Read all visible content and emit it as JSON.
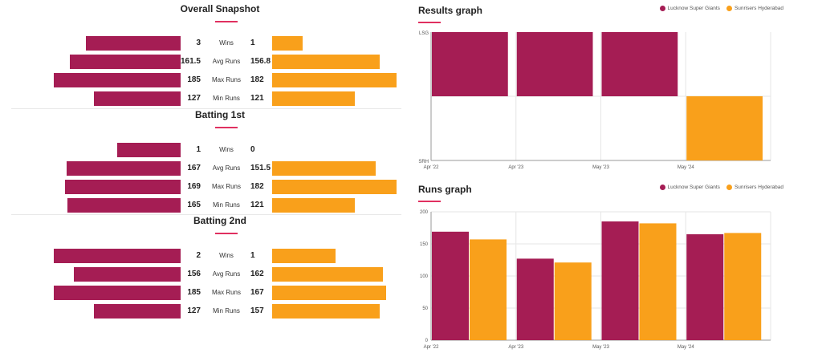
{
  "colors": {
    "lsg": "#a51d54",
    "srh": "#f9a01b",
    "accent": "#e03060"
  },
  "snapshot_sections": [
    {
      "title": "Overall Snapshot",
      "rows": [
        {
          "metric": "Wins",
          "left": 3,
          "left_label": "3",
          "right": 1,
          "right_label": "1"
        },
        {
          "metric": "Avg Runs",
          "left": 161.5,
          "left_label": "161.5",
          "right": 156.8,
          "right_label": "156.8"
        },
        {
          "metric": "Max Runs",
          "left": 185,
          "left_label": "185",
          "right": 182,
          "right_label": "182"
        },
        {
          "metric": "Min Runs",
          "left": 127,
          "left_label": "127",
          "right": 121,
          "right_label": "121"
        }
      ]
    },
    {
      "title": "Batting 1st",
      "rows": [
        {
          "metric": "Wins",
          "left": 1,
          "left_label": "1",
          "right": 0,
          "right_label": "0"
        },
        {
          "metric": "Avg Runs",
          "left": 167,
          "left_label": "167",
          "right": 151.5,
          "right_label": "151.5"
        },
        {
          "metric": "Max Runs",
          "left": 169,
          "left_label": "169",
          "right": 182,
          "right_label": "182"
        },
        {
          "metric": "Min Runs",
          "left": 165,
          "left_label": "165",
          "right": 121,
          "right_label": "121"
        }
      ]
    },
    {
      "title": "Batting 2nd",
      "rows": [
        {
          "metric": "Wins",
          "left": 2,
          "left_label": "2",
          "right": 1,
          "right_label": "1"
        },
        {
          "metric": "Avg Runs",
          "left": 156,
          "left_label": "156",
          "right": 162,
          "right_label": "162"
        },
        {
          "metric": "Max Runs",
          "left": 185,
          "left_label": "185",
          "right": 167,
          "right_label": "167"
        },
        {
          "metric": "Min Runs",
          "left": 127,
          "left_label": "127",
          "right": 157,
          "right_label": "157"
        }
      ]
    }
  ],
  "legend": {
    "lsg": "Lucknow Super Giants",
    "srh": "Sunrisers Hyderabad"
  },
  "chart_data": [
    {
      "type": "bar",
      "title": "Results graph",
      "categories": [
        "Apr '22",
        "Apr '23",
        "May '23",
        "May '24"
      ],
      "winners": [
        "lsg",
        "lsg",
        "lsg",
        "srh"
      ],
      "y_top_label": "LSG",
      "y_bottom_label": "SRH",
      "legend_position": "top-right"
    },
    {
      "type": "bar",
      "title": "Runs graph",
      "categories": [
        "Apr '22",
        "Apr '23",
        "May '23",
        "May '24"
      ],
      "series": [
        {
          "name": "Lucknow Super Giants",
          "values": [
            169,
            127,
            185,
            165
          ]
        },
        {
          "name": "Sunrisers Hyderabad",
          "values": [
            157,
            121,
            182,
            167
          ]
        }
      ],
      "ylim": [
        0,
        200
      ],
      "yticks": [
        0,
        50,
        100,
        150,
        200
      ],
      "legend_position": "top-right"
    }
  ]
}
